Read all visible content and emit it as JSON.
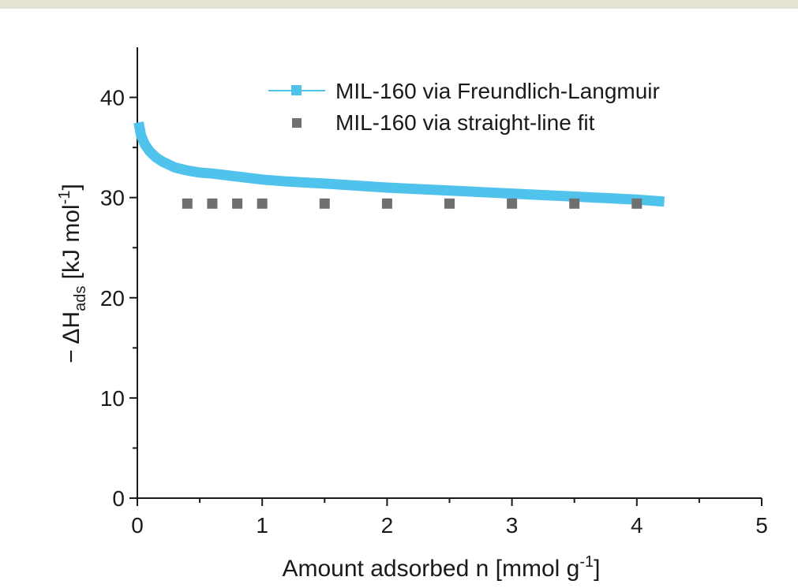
{
  "colors": {
    "freundlich": "#4fc3ec",
    "straight": "#6f6f6f",
    "axis": "#1a1a1a",
    "topbar": "#e3e2d3"
  },
  "chart_data": {
    "type": "scatter",
    "xlabel": {
      "main": "Amount adsorbed n [mmol g",
      "sup": "-1",
      "end": "]"
    },
    "ylabel": {
      "prefix": "− ΔH",
      "sub": "ads",
      "mid": " [kJ mol",
      "sup": "-1",
      "end": "]"
    },
    "xlim": [
      0,
      5
    ],
    "ylim": [
      0,
      45
    ],
    "xticks": [
      0,
      1,
      2,
      3,
      4,
      5
    ],
    "yticks": [
      0,
      10,
      20,
      30,
      40
    ],
    "x_tick_labels": [
      "0",
      "1",
      "2",
      "3",
      "4",
      "5"
    ],
    "y_tick_labels": [
      "0",
      "10",
      "20",
      "30",
      "40"
    ],
    "grid": false,
    "legend_position": "top-right",
    "series": [
      {
        "name": "MIL-160 via Freundlich-Langmuir",
        "kind": "line",
        "color": "#4fc3ec",
        "x": [
          0.01,
          0.03,
          0.06,
          0.1,
          0.15,
          0.2,
          0.3,
          0.4,
          0.5,
          0.6,
          0.8,
          1.0,
          1.2,
          1.5,
          2.0,
          2.5,
          3.0,
          3.5,
          4.0,
          4.22
        ],
        "y": [
          37.5,
          36.2,
          35.3,
          34.6,
          34.0,
          33.6,
          33.0,
          32.7,
          32.5,
          32.4,
          32.1,
          31.8,
          31.6,
          31.4,
          31.0,
          30.7,
          30.4,
          30.1,
          29.8,
          29.6
        ]
      },
      {
        "name": "MIL-160 via straight-line fit",
        "kind": "scatter",
        "color": "#6f6f6f",
        "x": [
          0.4,
          0.6,
          0.8,
          1.0,
          1.5,
          2.0,
          2.5,
          3.0,
          3.5,
          4.0
        ],
        "y": [
          29.4,
          29.4,
          29.4,
          29.4,
          29.4,
          29.4,
          29.4,
          29.4,
          29.4,
          29.4
        ]
      }
    ]
  }
}
